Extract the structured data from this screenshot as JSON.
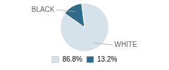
{
  "chart_data": {
    "type": "pie",
    "categories": [
      "WHITE",
      "BLACK"
    ],
    "values": [
      86.8,
      13.2
    ],
    "value_labels": [
      "86.8%",
      "13.2%"
    ],
    "colors": [
      "#d6e2ea",
      "#2e6b8a"
    ],
    "legend": "bottom"
  }
}
